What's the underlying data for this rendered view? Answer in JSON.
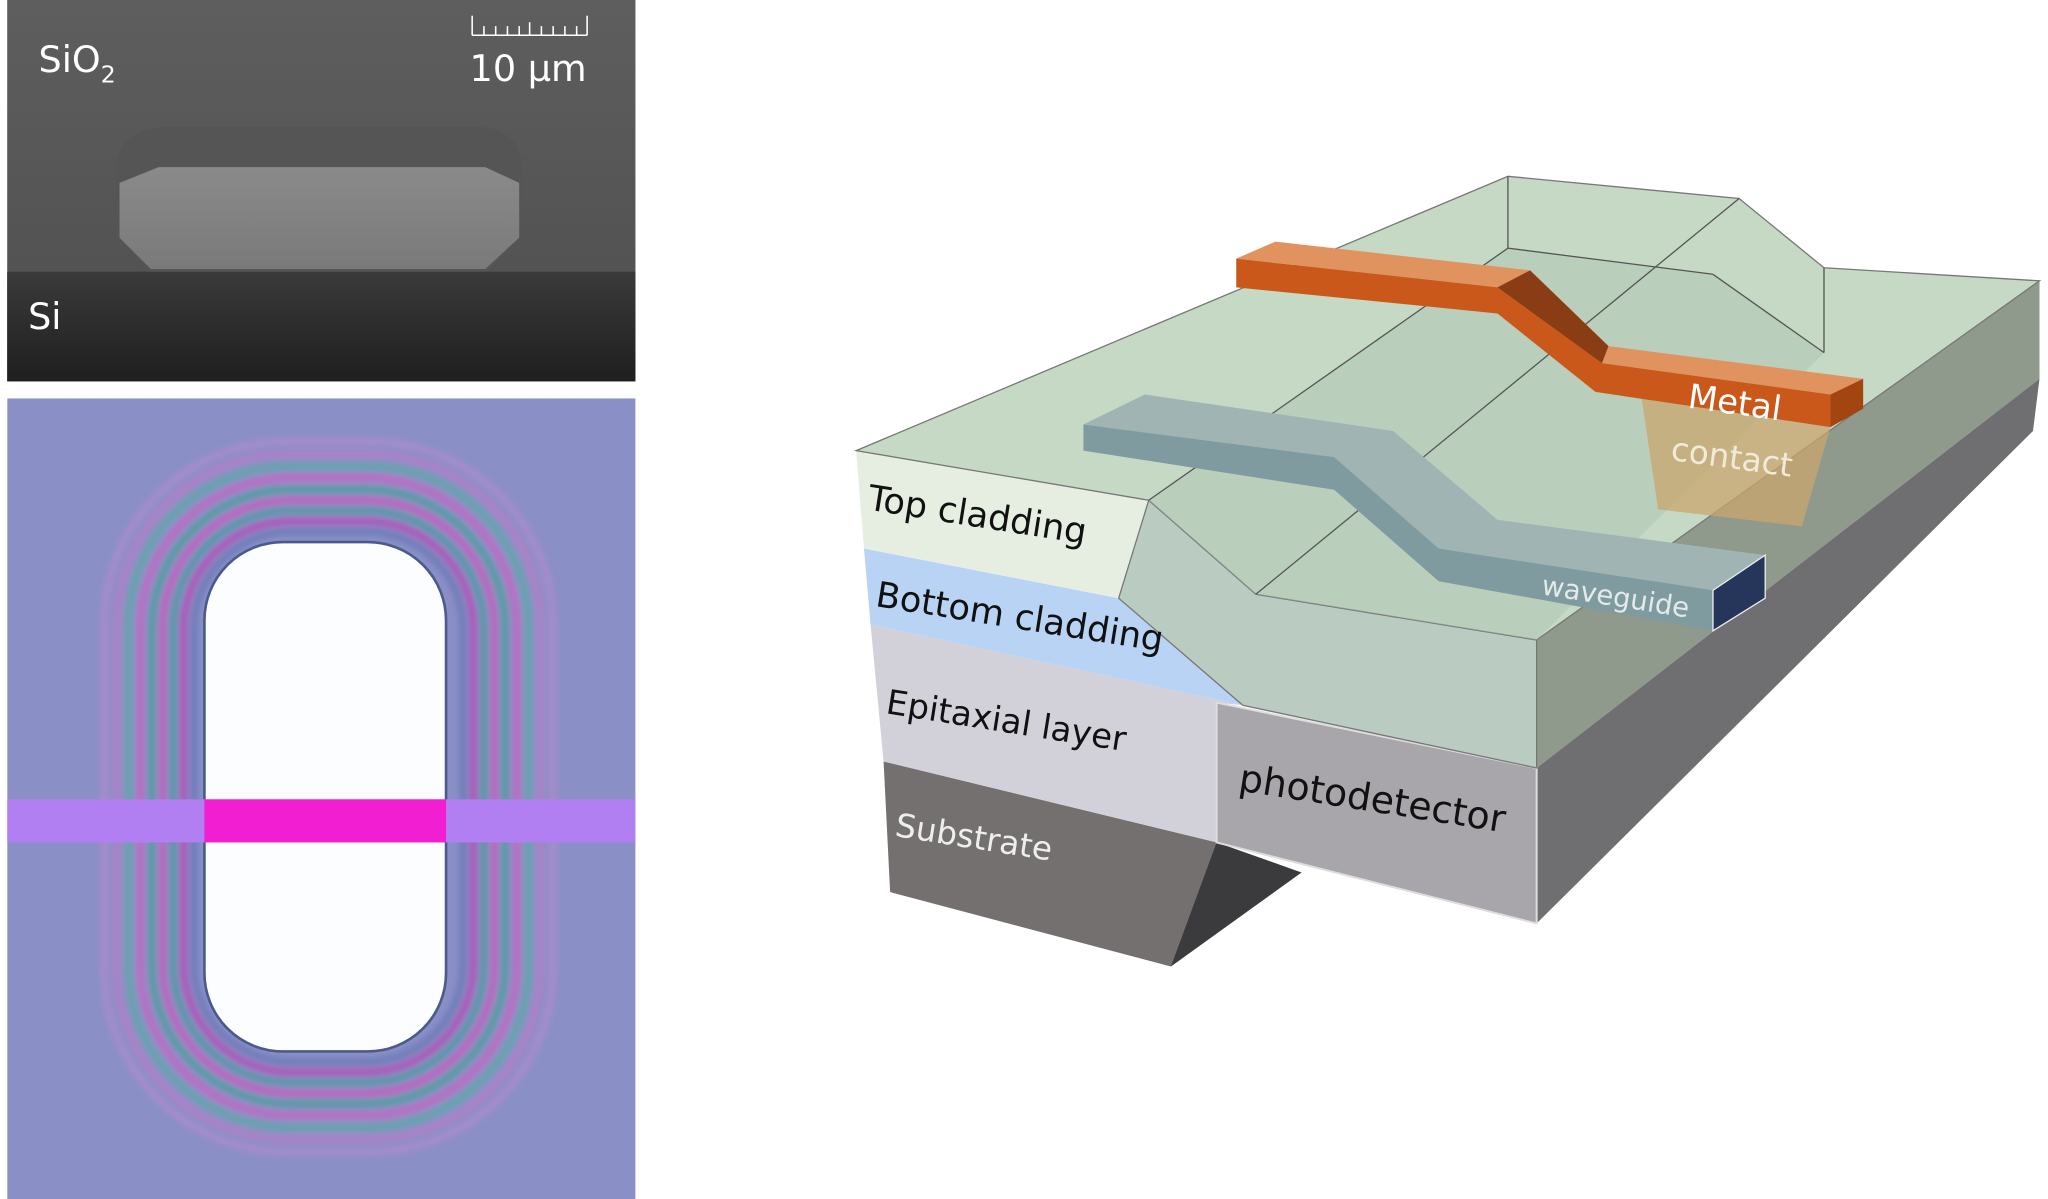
{
  "sem_panel": {
    "oxide_label": "SiO",
    "oxide_subscript": "2",
    "substrate_label": "Si",
    "scale_bar_label": "10 µm"
  },
  "optical_panel": {
    "colors": {
      "background": "#8a8fc6",
      "waveguide": "#b27ff2",
      "coupled_region": "#f21ed2",
      "window": "#fbfdfe"
    }
  },
  "schematic": {
    "labels": {
      "top_cladding": "Top cladding",
      "bottom_cladding": "Bottom cladding",
      "epitaxial_layer": "Epitaxial layer",
      "substrate": "Substrate",
      "photodetector": "photodetector",
      "metal": "Metal",
      "contact": "contact",
      "waveguide": "waveguide"
    },
    "colors": {
      "metal": "#c9581a",
      "cladding": "#b9d2b8",
      "bottom_cladding": "#b8d3f3",
      "epitaxial": "#d2d0d9",
      "substrate": "#747070",
      "photodetector": "#a8a5ab",
      "waveguide": "#7f9ba0"
    }
  }
}
